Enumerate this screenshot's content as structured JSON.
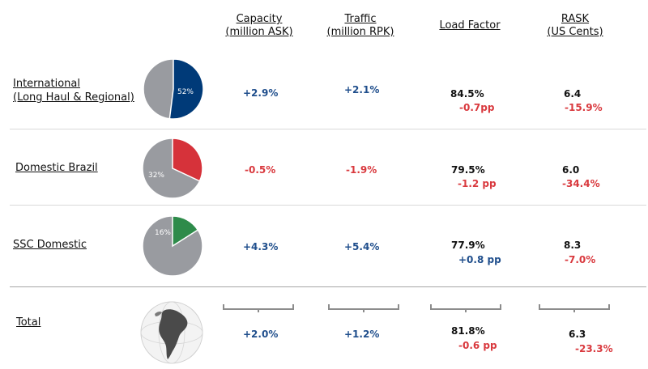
{
  "headers": {
    "capacity": [
      "Capacity",
      "(million ASK)"
    ],
    "traffic": [
      "Traffic",
      "(million RPK)"
    ],
    "load_factor": [
      "Load Factor"
    ],
    "rask": [
      "RASK",
      "(US Cents)"
    ]
  },
  "rows": [
    {
      "label_lines": [
        "International",
        "(Long Haul & Regional)"
      ],
      "pie": {
        "percent": 52,
        "label": "52%",
        "color": "#003a78"
      },
      "capacity": "+2.9%",
      "traffic": "+2.1%",
      "load_factor": "84.5%",
      "load_factor_delta": "-0.7pp",
      "rask": "6.4",
      "rask_delta": "-15.9%"
    },
    {
      "label_lines": [
        "Domestic Brazil"
      ],
      "pie": {
        "percent": 32,
        "label": "32%",
        "color": "#d6323a"
      },
      "capacity": "-0.5%",
      "traffic": "-1.9%",
      "load_factor": "79.5%",
      "load_factor_delta": "-1.2 pp",
      "rask": "6.0",
      "rask_delta": "-34.4%"
    },
    {
      "label_lines": [
        "SSC Domestic"
      ],
      "pie": {
        "percent": 16,
        "label": "16%",
        "color": "#2e8b4a"
      },
      "capacity": "+4.3%",
      "traffic": "+5.4%",
      "load_factor": "77.9%",
      "load_factor_delta": "+0.8 pp",
      "rask": "8.3",
      "rask_delta": "-7.0%"
    }
  ],
  "total": {
    "label": "Total",
    "capacity": "+2.0%",
    "traffic": "+1.2%",
    "load_factor": "81.8%",
    "load_factor_delta": "-0.6 pp",
    "rask": "6.3",
    "rask_delta": "-23.3%"
  },
  "colors": {
    "positive": "#1f4e8c",
    "negative": "#d9393e",
    "pie_rest": "#999ba0"
  }
}
